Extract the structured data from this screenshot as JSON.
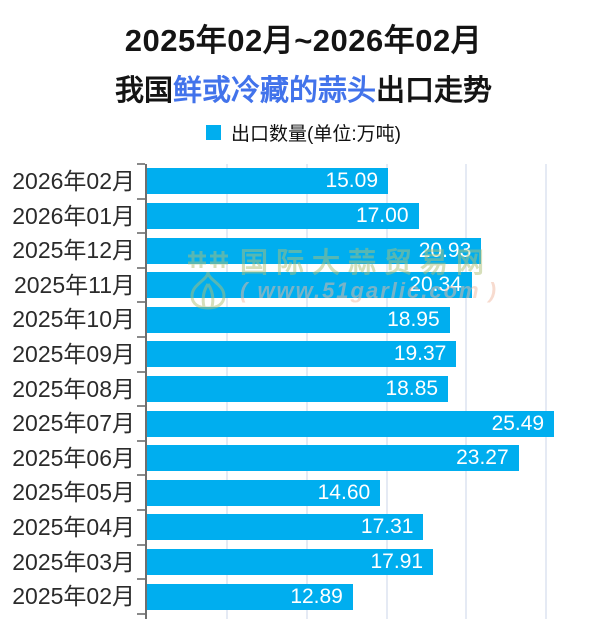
{
  "title": {
    "line1": "2025年02月~2026年02月",
    "line2_prefix": "我国",
    "line2_highlight": "鲜或冷藏的蒜头",
    "line2_suffix": "出口走势"
  },
  "legend": {
    "label": "出口数量(单位:万吨)"
  },
  "watermark": {
    "site_name": "国际大蒜贸易网",
    "site_url": "( www.51garlic.com )",
    "logo": "garlic-bulb"
  },
  "colors": {
    "bar": "#00aeef",
    "title_highlight": "#4273eb",
    "grid": "#e5eaf4",
    "axis": "#6f6f6f",
    "category_text": "#2b2b2b",
    "value_text": "#ffffff"
  },
  "chart_data": {
    "type": "bar",
    "orientation": "horizontal",
    "title": "2025年02月~2026年02月 我国鲜或冷藏的蒜头出口走势",
    "series_name": "出口数量",
    "unit": "万吨",
    "categories": [
      "2026年02月",
      "2026年01月",
      "2025年12月",
      "2025年11月",
      "2025年10月",
      "2025年09月",
      "2025年08月",
      "2025年07月",
      "2025年06月",
      "2025年05月",
      "2025年04月",
      "2025年03月",
      "2025年02月"
    ],
    "values": [
      15.09,
      17.0,
      20.93,
      20.34,
      18.95,
      19.37,
      18.85,
      25.49,
      23.27,
      14.6,
      17.31,
      17.91,
      12.89
    ],
    "value_labels": [
      "15.09",
      "17.00",
      "20.93",
      "20.34",
      "18.95",
      "19.37",
      "18.85",
      "25.49",
      "23.27",
      "14.60",
      "17.31",
      "17.91",
      "12.89"
    ],
    "xlim": [
      0,
      28.8
    ],
    "gridline_values": [
      5,
      10,
      15,
      20,
      25
    ],
    "grid": "on",
    "legend_position": "top"
  }
}
